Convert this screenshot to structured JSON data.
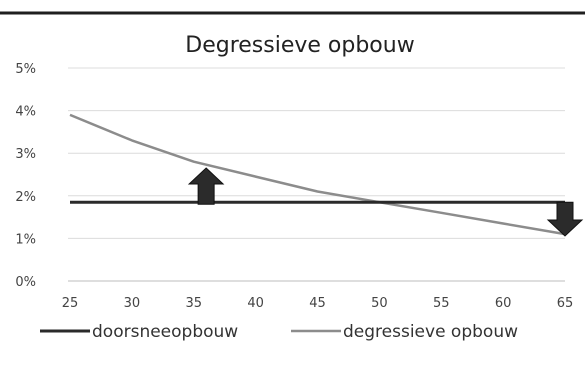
{
  "chart_data": {
    "type": "line",
    "title": "Degressieve opbouw",
    "xlabel": "",
    "ylabel": "",
    "x": [
      25,
      30,
      35,
      40,
      45,
      50,
      55,
      60,
      65
    ],
    "ylim": [
      0,
      5
    ],
    "yticks": [
      "0%",
      "1%",
      "2%",
      "3%",
      "4%",
      "5%"
    ],
    "grid": true,
    "legend_position": "bottom",
    "series": [
      {
        "name": "doorsneeopbouw",
        "color": "#2a2a2a",
        "values": [
          1.85,
          1.85,
          1.85,
          1.85,
          1.85,
          1.85,
          1.85,
          1.85,
          1.85
        ]
      },
      {
        "name": "degressieve opbouw",
        "color": "#8c8c8c",
        "values": [
          3.9,
          3.3,
          2.8,
          2.45,
          2.1,
          1.85,
          1.6,
          1.35,
          1.1
        ]
      }
    ],
    "annotations": [
      {
        "type": "arrow-up",
        "x": 36,
        "icon": "arrow-up-icon"
      },
      {
        "type": "arrow-down",
        "x": 65,
        "icon": "arrow-down-icon"
      }
    ]
  }
}
